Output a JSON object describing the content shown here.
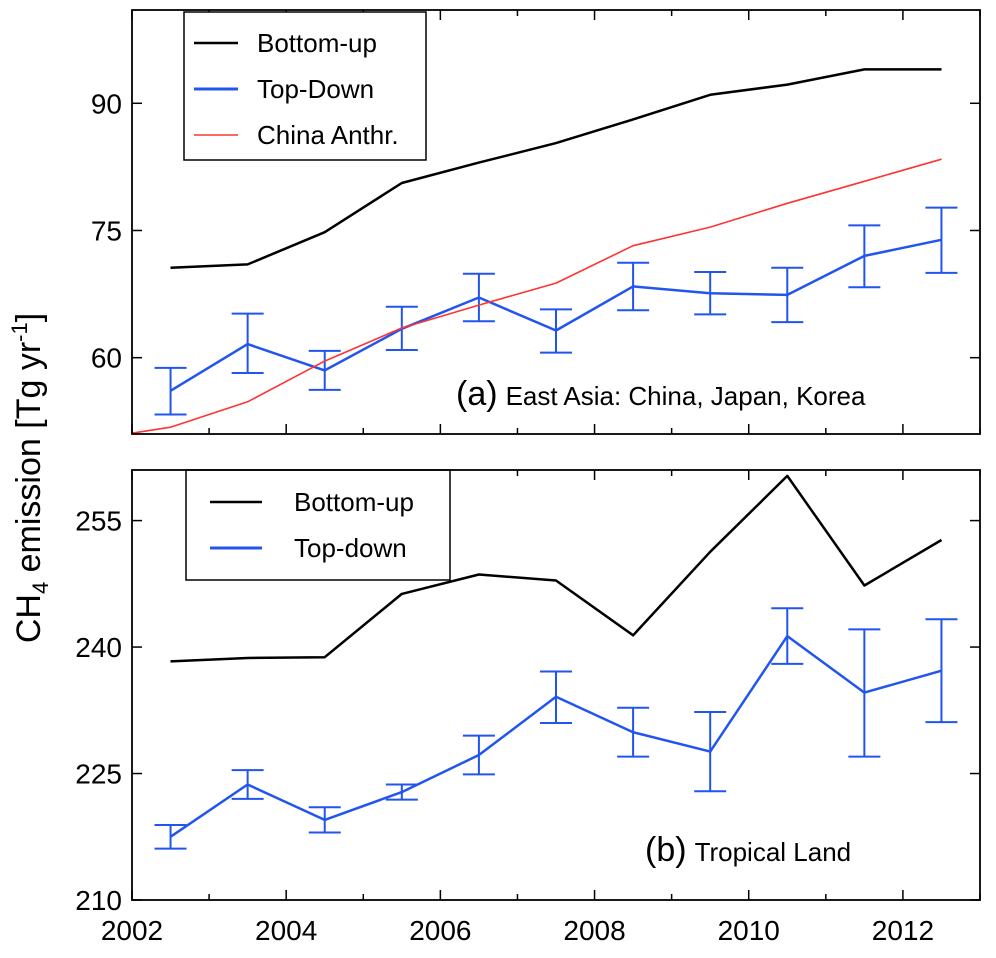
{
  "figure": {
    "ylabel": {
      "main": "CH",
      "sub": "4",
      "rest": " emission [Tg yr",
      "sup": "-1",
      "close": "]"
    }
  },
  "chart_data": [
    {
      "type": "line",
      "panel": "a",
      "annotation": {
        "letter": "(a)",
        "text": "East Asia: China, Japan, Korea"
      },
      "xlim": [
        2002,
        2013
      ],
      "ylim": [
        51,
        101
      ],
      "yticks": [
        60,
        75,
        90
      ],
      "xticks": [
        2002,
        2004,
        2006,
        2008,
        2010,
        2012
      ],
      "grid": false,
      "legend_position": "top-left",
      "series": [
        {
          "name": "Bottom-up",
          "color": "#000000",
          "x": [
            2002.5,
            2003.5,
            2004.5,
            2005.5,
            2006.5,
            2007.5,
            2008.5,
            2009.5,
            2010.5,
            2011.5,
            2012.5
          ],
          "y": [
            70.6,
            71.0,
            74.8,
            80.6,
            83.0,
            85.3,
            88.1,
            91.0,
            92.2,
            94.0,
            94.0
          ]
        },
        {
          "name": "Top-Down",
          "color": "#2255ee",
          "x": [
            2002.5,
            2003.5,
            2004.5,
            2005.5,
            2006.5,
            2007.5,
            2008.5,
            2009.5,
            2010.5,
            2011.5,
            2012.5
          ],
          "y": [
            56.1,
            61.6,
            58.5,
            63.4,
            67.1,
            63.2,
            68.4,
            67.6,
            67.4,
            72.0,
            73.9
          ],
          "error_low": [
            53.3,
            58.2,
            56.2,
            60.9,
            64.3,
            60.6,
            65.6,
            65.1,
            64.2,
            68.3,
            70.0
          ],
          "error_high": [
            58.8,
            65.2,
            60.8,
            66.0,
            69.9,
            65.7,
            71.2,
            70.1,
            70.6,
            75.6,
            77.7
          ]
        },
        {
          "name": "China Anthr.",
          "color": "#ff3333",
          "x": [
            2002.0,
            2002.5,
            2003.5,
            2004.5,
            2005.5,
            2006.5,
            2007.5,
            2008.5,
            2009.5,
            2010.5,
            2011.5,
            2012.5
          ],
          "y": [
            51.1,
            51.8,
            54.8,
            59.6,
            63.5,
            66.2,
            68.8,
            73.2,
            75.4,
            78.2,
            80.8,
            83.4
          ]
        }
      ]
    },
    {
      "type": "line",
      "panel": "b",
      "annotation": {
        "letter": "(b)",
        "text": "Tropical Land"
      },
      "xlim": [
        2002,
        2013
      ],
      "ylim": [
        210,
        261
      ],
      "yticks": [
        210,
        225,
        240,
        255
      ],
      "xticks": [
        2002,
        2004,
        2006,
        2008,
        2010,
        2012
      ],
      "xticklabels": [
        "2002",
        "2004",
        "2006",
        "2008",
        "2010",
        "2012"
      ],
      "grid": false,
      "legend_position": "top-left",
      "series": [
        {
          "name": "Bottom-up",
          "color": "#000000",
          "x": [
            2002.5,
            2003.5,
            2004.5,
            2005.5,
            2006.5,
            2007.5,
            2008.5,
            2009.5,
            2010.5,
            2011.5,
            2012.5
          ],
          "y": [
            238.3,
            238.7,
            238.8,
            246.3,
            248.6,
            247.9,
            241.4,
            251.3,
            260.3,
            247.3,
            252.7
          ]
        },
        {
          "name": "Top-down",
          "color": "#2255ee",
          "x": [
            2002.5,
            2003.5,
            2004.5,
            2005.5,
            2006.5,
            2007.5,
            2008.5,
            2009.5,
            2010.5,
            2011.5,
            2012.5
          ],
          "y": [
            217.5,
            223.7,
            219.5,
            222.8,
            227.2,
            234.1,
            229.9,
            227.6,
            241.3,
            234.6,
            237.2
          ],
          "error_low": [
            216.1,
            222.0,
            218.0,
            221.9,
            224.9,
            231.0,
            227.0,
            222.9,
            238.0,
            227.0,
            231.1
          ],
          "error_high": [
            218.9,
            225.4,
            221.0,
            223.7,
            229.5,
            237.1,
            232.8,
            232.3,
            244.6,
            242.1,
            243.3
          ]
        }
      ]
    }
  ]
}
